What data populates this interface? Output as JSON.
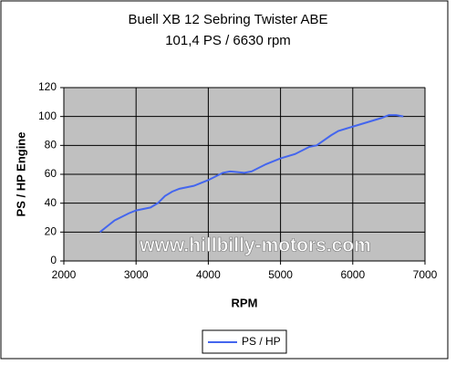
{
  "chart_data": {
    "type": "line",
    "title": "Buell XB 12 Sebring Twister ABE",
    "subtitle": "101,4 PS / 6630 rpm",
    "x_label": "RPM",
    "y_label": "PS / HP Engine",
    "watermark": "www.hillbilly-motors.com",
    "x": [
      2500,
      2600,
      2700,
      2900,
      3000,
      3200,
      3300,
      3400,
      3500,
      3600,
      3800,
      4000,
      4200,
      4300,
      4500,
      4600,
      4800,
      5000,
      5200,
      5400,
      5500,
      5700,
      5800,
      6000,
      6200,
      6400,
      6500,
      6600,
      6700
    ],
    "series": [
      {
        "name": "PS / HP",
        "color": "#4466ee",
        "values": [
          20,
          24,
          28,
          33,
          35,
          37,
          40,
          45,
          48,
          50,
          52,
          56,
          61,
          62,
          61,
          62,
          67,
          71,
          74,
          79,
          80,
          87,
          90,
          93,
          96,
          99,
          101,
          101,
          100
        ]
      }
    ],
    "xlim": [
      2000,
      7000
    ],
    "xticks": [
      2000,
      3000,
      4000,
      5000,
      6000,
      7000
    ],
    "ylim": [
      0,
      120
    ],
    "yticks": [
      0,
      20,
      40,
      60,
      80,
      100,
      120
    ],
    "grid": true,
    "legend": "bottom"
  }
}
